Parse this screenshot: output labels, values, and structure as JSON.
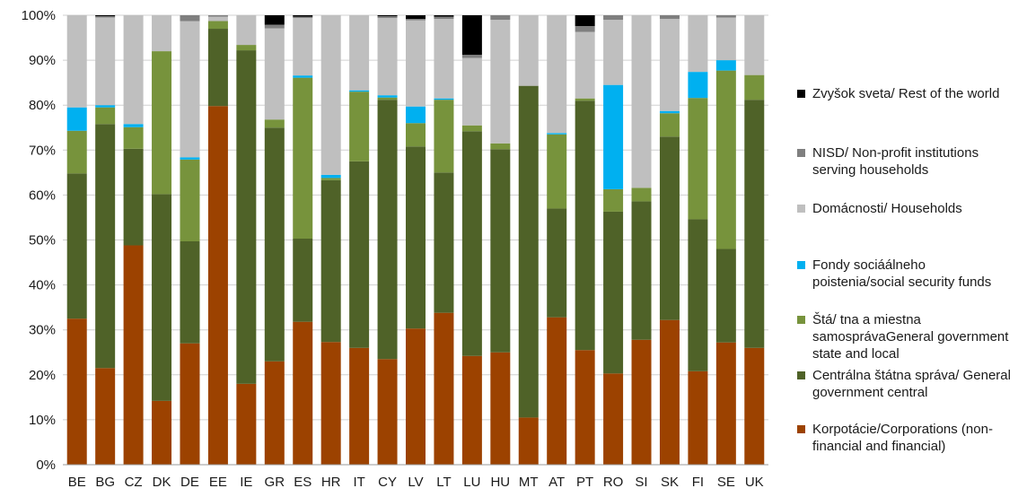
{
  "chart_data": {
    "type": "bar",
    "stacked": true,
    "percent_stacked": true,
    "categories": [
      "BE",
      "BG",
      "CZ",
      "DK",
      "DE",
      "EE",
      "IE",
      "GR",
      "ES",
      "HR",
      "IT",
      "CY",
      "LV",
      "LT",
      "LU",
      "HU",
      "MT",
      "AT",
      "PT",
      "RO",
      "SI",
      "SK",
      "FI",
      "SE",
      "UK"
    ],
    "y_ticks": [
      "0%",
      "10%",
      "20%",
      "30%",
      "40%",
      "50%",
      "60%",
      "70%",
      "80%",
      "90%",
      "100%"
    ],
    "ylim": [
      0,
      100
    ],
    "grid": true,
    "legend_position": "right",
    "series": [
      {
        "name": "Korpotácie/Corporations (non-financial and financial)",
        "color": "#9C4200",
        "values": [
          32.5,
          21.5,
          48.8,
          14.2,
          27.0,
          79.8,
          18.0,
          23.0,
          31.8,
          27.3,
          26.0,
          23.5,
          30.3,
          33.8,
          24.2,
          25.0,
          10.5,
          32.8,
          25.5,
          20.3,
          27.8,
          32.2,
          20.8,
          27.2,
          26.0
        ]
      },
      {
        "name": "Centrálna štátna správa/ General government central",
        "color": "#4F6228",
        "values": [
          32.3,
          54.3,
          21.5,
          46.0,
          22.7,
          17.2,
          74.2,
          52.0,
          18.5,
          36.0,
          41.5,
          57.7,
          40.5,
          31.2,
          50.0,
          45.2,
          73.8,
          24.2,
          55.5,
          36.0,
          30.8,
          40.8,
          33.8,
          20.8,
          55.2
        ]
      },
      {
        "name": "Štá/ tna a miestna samosprávaGeneral government state and local",
        "color": "#77933C",
        "values": [
          9.5,
          3.7,
          4.8,
          31.8,
          18.2,
          1.7,
          1.2,
          1.8,
          35.8,
          0.5,
          15.5,
          0.5,
          5.2,
          16.2,
          1.3,
          1.3,
          0.0,
          16.5,
          0.5,
          5.0,
          3.0,
          5.2,
          27.0,
          39.7,
          5.5
        ]
      },
      {
        "name": "Fondy sociáálneho poistenia/social security funds",
        "color": "#00B0F0",
        "values": [
          5.2,
          0.5,
          0.7,
          0.0,
          0.5,
          0.0,
          0.0,
          0.0,
          0.5,
          0.7,
          0.3,
          0.5,
          3.7,
          0.3,
          0.0,
          0.0,
          0.0,
          0.3,
          0.0,
          23.2,
          0.0,
          0.5,
          5.8,
          2.3,
          0.0
        ]
      },
      {
        "name": "Domácnosti/ Households",
        "color": "#BFBFBF",
        "values": [
          20.5,
          19.5,
          24.2,
          8.0,
          30.3,
          1.0,
          6.6,
          20.3,
          12.8,
          35.5,
          16.7,
          17.2,
          19.2,
          17.7,
          15.0,
          27.5,
          15.7,
          26.2,
          14.8,
          14.5,
          38.4,
          20.5,
          12.6,
          9.5,
          13.3
        ]
      },
      {
        "name": "NISD/ Non-profit institutions serving households",
        "color": "#7F7F7F",
        "values": [
          0.0,
          0.3,
          0.0,
          0.0,
          1.3,
          0.3,
          0.0,
          0.8,
          0.3,
          0.0,
          0.0,
          0.4,
          0.3,
          0.5,
          0.7,
          1.0,
          0.0,
          0.0,
          1.3,
          1.0,
          0.0,
          0.8,
          0.0,
          0.5,
          0.0
        ]
      },
      {
        "name": "Zvyšok sveta/ Rest of the world",
        "color": "#000000",
        "values": [
          0.0,
          0.2,
          0.0,
          0.0,
          0.0,
          0.0,
          0.0,
          2.1,
          0.3,
          0.0,
          0.0,
          0.2,
          0.8,
          0.3,
          8.8,
          0.0,
          0.0,
          0.0,
          2.4,
          0.0,
          0.0,
          0.0,
          0.0,
          0.0,
          0.0
        ]
      }
    ]
  },
  "legend": [
    {
      "label": "Zvyšok sveta/ Rest of the world",
      "color": "#000000"
    },
    {
      "label": "NISD/ Non-profit institutions serving households",
      "color": "#7F7F7F"
    },
    {
      "label": "Domácnosti/ Households",
      "color": "#BFBFBF"
    },
    {
      "label": "Fondy sociáálneho poistenia/social security funds",
      "color": "#00B0F0"
    },
    {
      "label": "Štá/ tna a miestna samosprávaGeneral government state and local",
      "color": "#77933C"
    },
    {
      "label": "Centrálna štátna správa/ General government central",
      "color": "#4F6228"
    },
    {
      "label": "Korpotácie/Corporations (non-financial and financial)",
      "color": "#9C4200"
    }
  ]
}
